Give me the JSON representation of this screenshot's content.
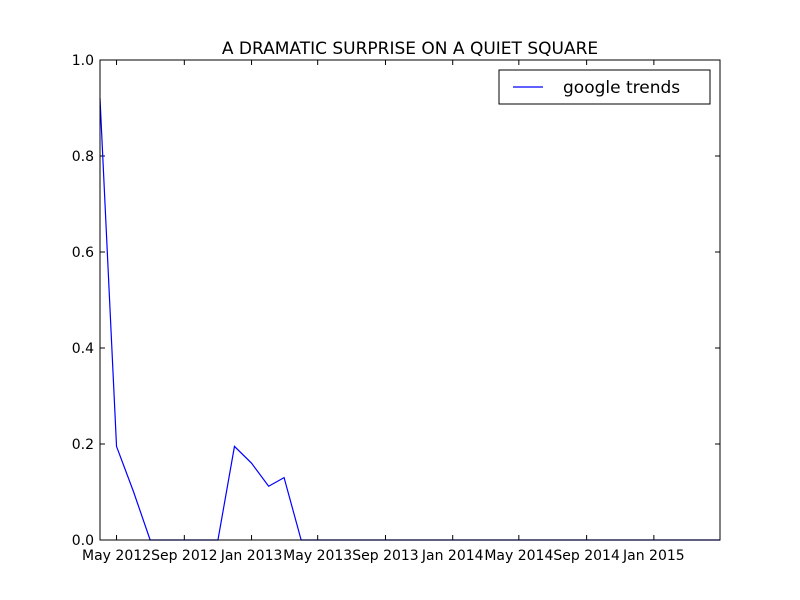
{
  "chart_data": {
    "type": "line",
    "title": "A DRAMATIC SURPRISE ON A QUIET SQUARE",
    "xlabel": "",
    "ylabel": "",
    "x_axis_type": "date",
    "xlim": [
      "2012-04-01",
      "2015-05-01"
    ],
    "ylim": [
      0,
      1.0
    ],
    "yticks": [
      {
        "value": 0.0,
        "label": "0.0"
      },
      {
        "value": 0.2,
        "label": "0.2"
      },
      {
        "value": 0.4,
        "label": "0.4"
      },
      {
        "value": 0.6,
        "label": "0.6"
      },
      {
        "value": 0.8,
        "label": "0.8"
      },
      {
        "value": 1.0,
        "label": "1.0"
      }
    ],
    "xticks": [
      {
        "date": "2012-05-01",
        "label": "May 2012"
      },
      {
        "date": "2012-09-01",
        "label": "Sep 2012"
      },
      {
        "date": "2013-01-01",
        "label": "Jan 2013"
      },
      {
        "date": "2013-05-01",
        "label": "May 2013"
      },
      {
        "date": "2013-09-01",
        "label": "Sep 2013"
      },
      {
        "date": "2014-01-01",
        "label": "Jan 2014"
      },
      {
        "date": "2014-05-01",
        "label": "May 2014"
      },
      {
        "date": "2014-09-01",
        "label": "Sep 2014"
      },
      {
        "date": "2015-01-01",
        "label": "Jan 2015"
      }
    ],
    "grid": false,
    "legend_position": "top-right",
    "series": [
      {
        "name": "google trends",
        "color": "#0000ff",
        "points": [
          {
            "x": "2012-04-01",
            "y": 0.92
          },
          {
            "x": "2012-05-01",
            "y": 0.195
          },
          {
            "x": "2012-06-01",
            "y": 0.1
          },
          {
            "x": "2012-07-01",
            "y": 0.0
          },
          {
            "x": "2012-08-01",
            "y": 0.0
          },
          {
            "x": "2012-09-01",
            "y": 0.0
          },
          {
            "x": "2012-10-01",
            "y": 0.0
          },
          {
            "x": "2012-11-01",
            "y": 0.0
          },
          {
            "x": "2012-12-01",
            "y": 0.195
          },
          {
            "x": "2013-01-01",
            "y": 0.16
          },
          {
            "x": "2013-02-01",
            "y": 0.112
          },
          {
            "x": "2013-03-01",
            "y": 0.13
          },
          {
            "x": "2013-04-01",
            "y": 0.0
          },
          {
            "x": "2013-05-01",
            "y": 0.0
          },
          {
            "x": "2013-06-01",
            "y": 0.0
          },
          {
            "x": "2013-07-01",
            "y": 0.0
          },
          {
            "x": "2013-08-01",
            "y": 0.0
          },
          {
            "x": "2013-09-01",
            "y": 0.0
          },
          {
            "x": "2013-10-01",
            "y": 0.0
          },
          {
            "x": "2013-11-01",
            "y": 0.0
          },
          {
            "x": "2013-12-01",
            "y": 0.0
          },
          {
            "x": "2014-01-01",
            "y": 0.0
          },
          {
            "x": "2014-02-01",
            "y": 0.0
          },
          {
            "x": "2014-03-01",
            "y": 0.0
          },
          {
            "x": "2014-04-01",
            "y": 0.0
          },
          {
            "x": "2014-05-01",
            "y": 0.0
          },
          {
            "x": "2014-06-01",
            "y": 0.0
          },
          {
            "x": "2014-07-01",
            "y": 0.0
          },
          {
            "x": "2014-08-01",
            "y": 0.0
          },
          {
            "x": "2014-09-01",
            "y": 0.0
          },
          {
            "x": "2014-10-01",
            "y": 0.0
          },
          {
            "x": "2014-11-01",
            "y": 0.0
          },
          {
            "x": "2014-12-01",
            "y": 0.0
          },
          {
            "x": "2015-01-01",
            "y": 0.0
          },
          {
            "x": "2015-02-01",
            "y": 0.0
          },
          {
            "x": "2015-03-01",
            "y": 0.0
          },
          {
            "x": "2015-04-01",
            "y": 0.0
          },
          {
            "x": "2015-05-01",
            "y": 0.0
          }
        ]
      }
    ]
  }
}
